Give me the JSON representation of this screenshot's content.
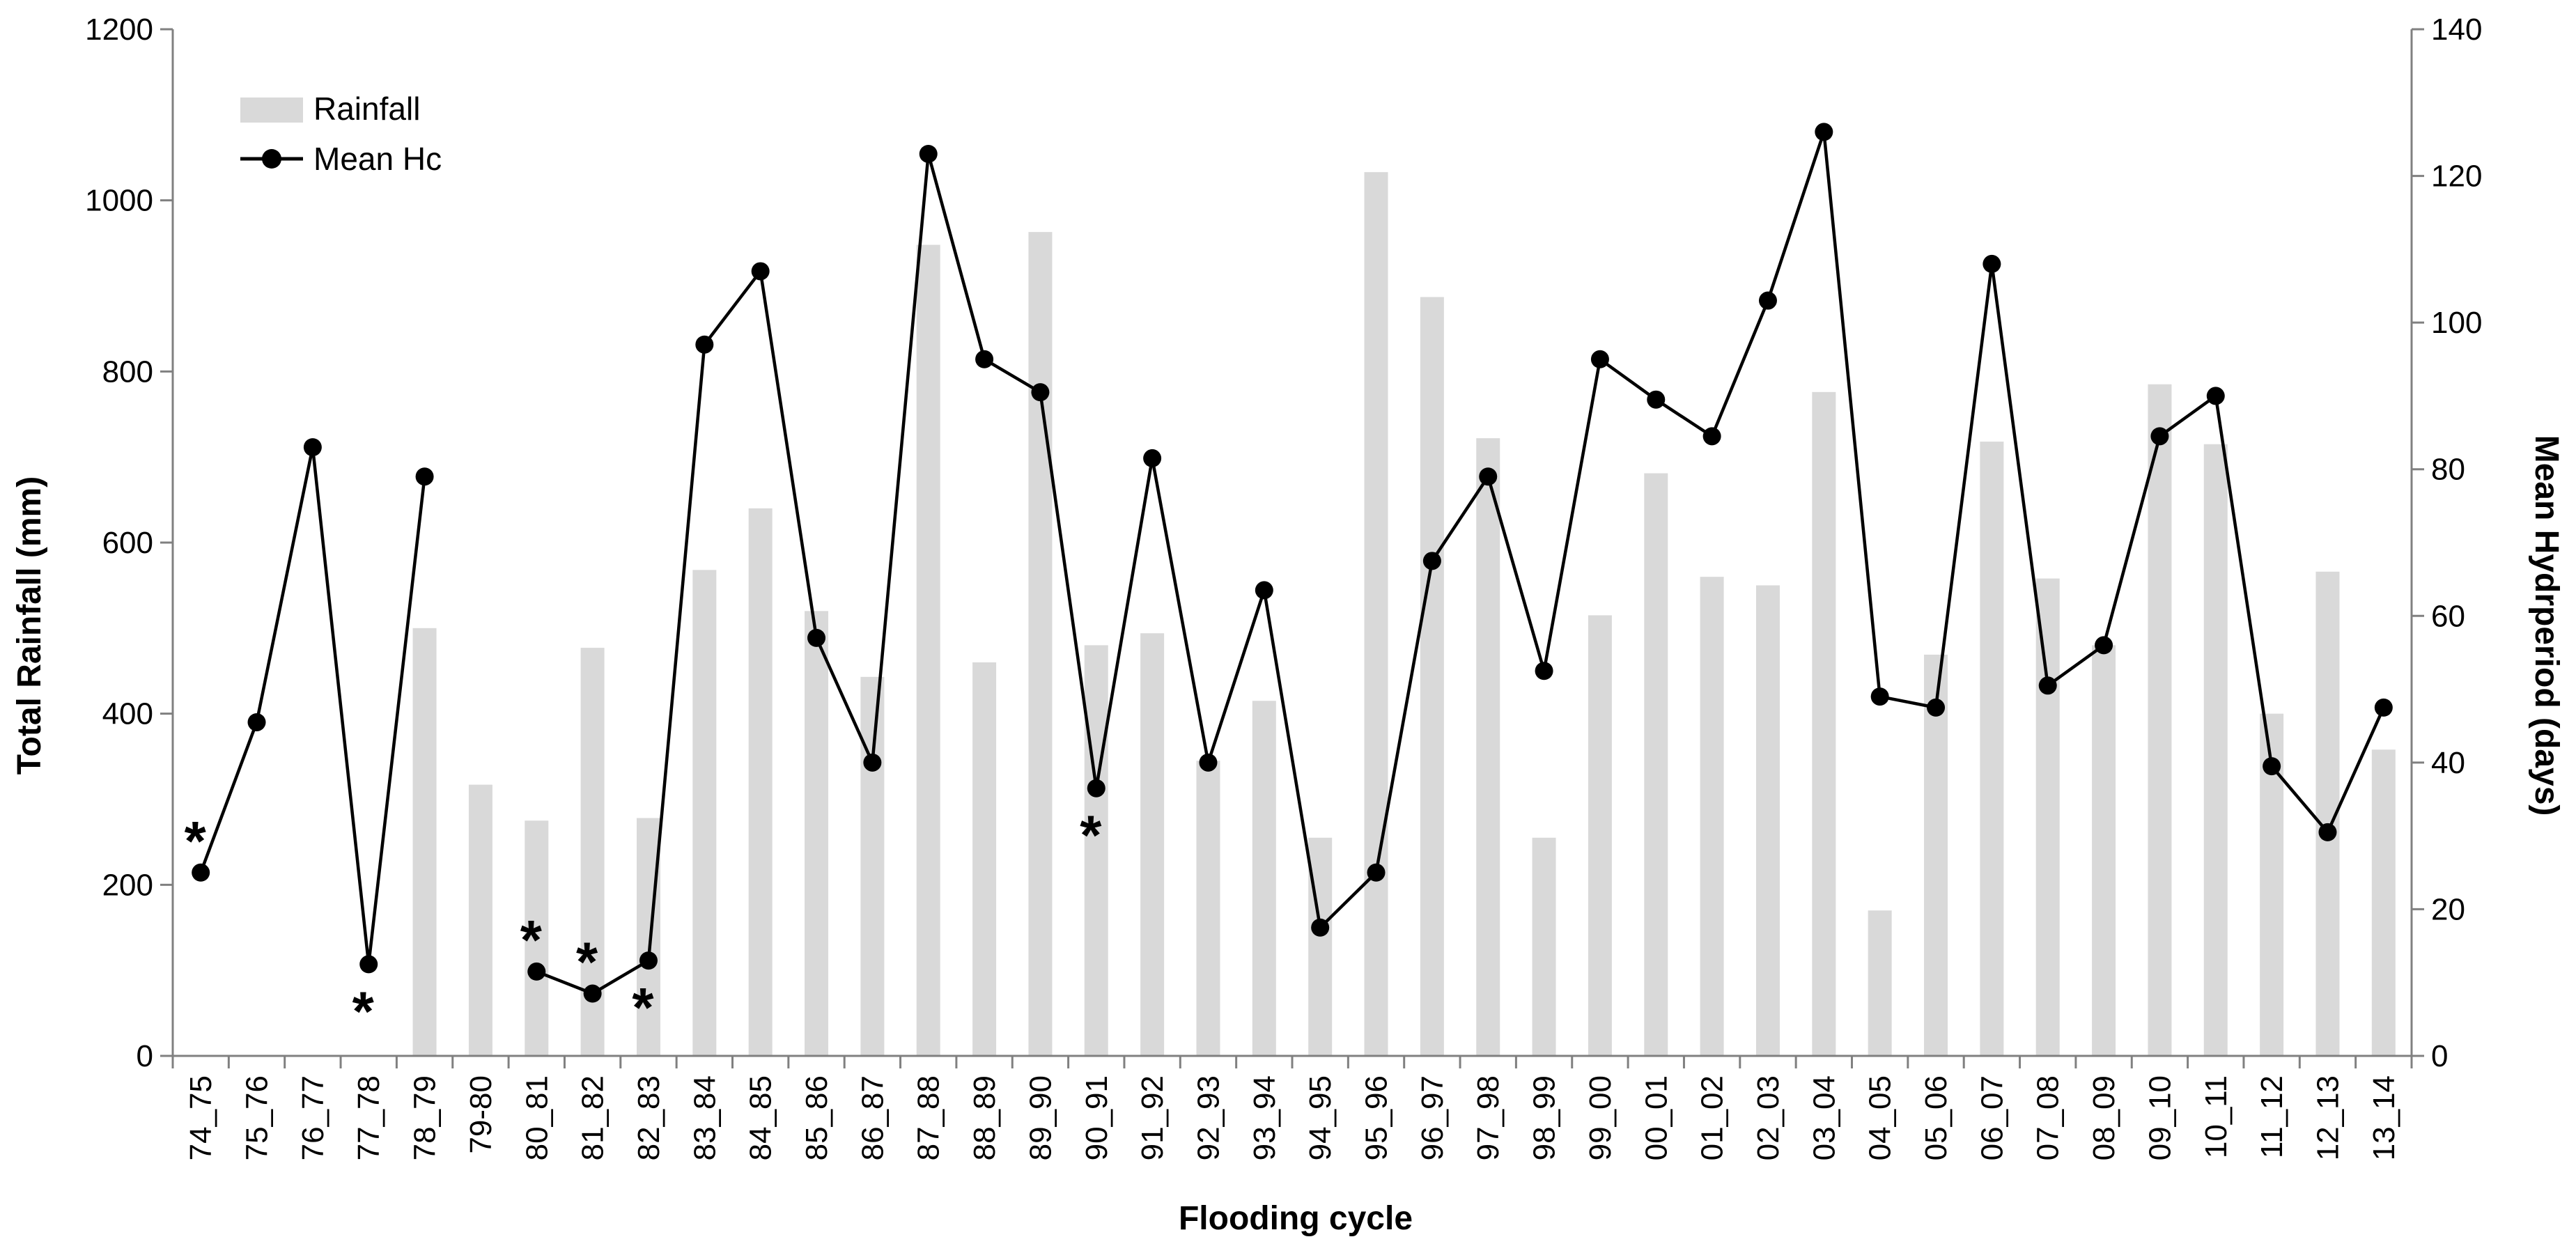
{
  "chart_data": {
    "type": "bar+line",
    "xlabel": "Flooding cycle",
    "ylabel_left": "Total Rainfall (mm)",
    "ylabel_right": "Mean Hydrperiod (days)",
    "ylim_left": [
      0,
      1200
    ],
    "ylim_right": [
      0,
      140
    ],
    "yticks_left": [
      "0",
      "200",
      "400",
      "600",
      "800",
      "1000",
      "1200"
    ],
    "yticks_right": [
      "0",
      "20",
      "40",
      "60",
      "80",
      "100",
      "120",
      "140"
    ],
    "legend_position": "top-left",
    "grid": false,
    "colors": {
      "bar": "#d9d9d9",
      "line": "#000000",
      "axis": "#808080"
    },
    "categories": [
      "74_75",
      "75_76",
      "76_77",
      "77_78",
      "78_79",
      "79-80",
      "80_81",
      "81_82",
      "82_83",
      "83_84",
      "84_85",
      "85_86",
      "86_87",
      "87_88",
      "88_89",
      "89_90",
      "90_91",
      "91_92",
      "92_93",
      "93_94",
      "94_95",
      "95_96",
      "96_97",
      "97_98",
      "98_99",
      "99_00",
      "00_01",
      "01_02",
      "02_03",
      "03_04",
      "04_05",
      "05_06",
      "06_07",
      "07_08",
      "08_09",
      "09_10",
      "10_11",
      "11_12",
      "12_13",
      "13_14"
    ],
    "series": [
      {
        "name": "Rainfall",
        "type": "bar",
        "axis": "left",
        "values": [
          null,
          null,
          null,
          null,
          500,
          317,
          275,
          477,
          278,
          568,
          640,
          520,
          443,
          948,
          460,
          963,
          480,
          494,
          345,
          415,
          255,
          1033,
          887,
          722,
          255,
          515,
          681,
          560,
          550,
          776,
          170,
          469,
          718,
          558,
          480,
          785,
          715,
          400,
          566,
          358
        ]
      },
      {
        "name": "Mean Hc",
        "type": "line",
        "axis": "right",
        "values": [
          25,
          45.5,
          83,
          12.5,
          79,
          null,
          11.5,
          8.5,
          13,
          97,
          107,
          57,
          40,
          123,
          95,
          90.5,
          36.5,
          81.5,
          40,
          63.5,
          17.5,
          25,
          67.5,
          79,
          52.5,
          95,
          89.5,
          84.5,
          103,
          126,
          49,
          47.5,
          108,
          50.5,
          56,
          84.5,
          90,
          39.5,
          30.5,
          47.5
        ]
      }
    ],
    "asterisk_marks": [
      {
        "category": "74_75",
        "symbol": "*",
        "position": "above"
      },
      {
        "category": "77_78",
        "symbol": "*",
        "position": "below"
      },
      {
        "category": "80_81",
        "symbol": "*",
        "position": "above"
      },
      {
        "category": "81_82",
        "symbol": "*",
        "position": "above"
      },
      {
        "category": "82_83",
        "symbol": "*",
        "position": "below"
      },
      {
        "category": "90_91",
        "symbol": "*",
        "position": "below"
      }
    ]
  }
}
